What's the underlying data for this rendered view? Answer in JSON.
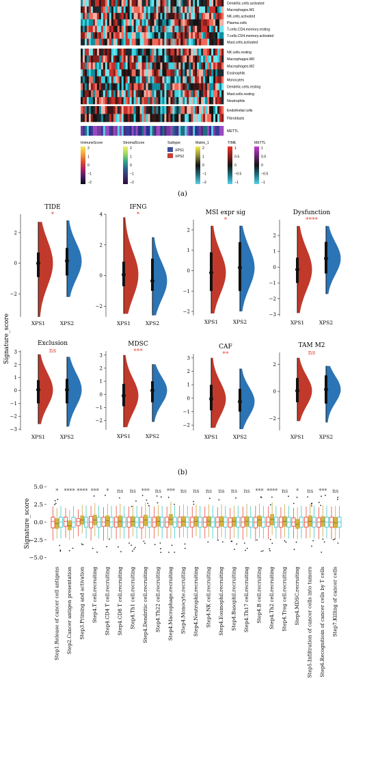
{
  "panel_a": {
    "label": "(a)",
    "row_groups": [
      [
        "Dendritic.cells.activated",
        "Macrophages.M1",
        "NK.cells.activated",
        "Plasma.cells",
        "T.cells.CD4.memory.resting",
        "T.cells.CD4.memory.activated",
        "Mast.cells.activated"
      ],
      [
        "NK.cells.resting",
        "Macrophages.M0",
        "Macrophages.M2",
        "Eosinophils",
        "Monocytes",
        "Dendritic.cells.resting",
        "Mast.cells.resting",
        "Neutrophils"
      ],
      [
        "Endothelial cells",
        "Fibroblasts"
      ],
      [
        "METTL"
      ]
    ],
    "legends": [
      {
        "title": "ImmuneScore",
        "ticks": [
          "2",
          "1",
          "0",
          "−1",
          "−2"
        ],
        "colors": [
          "#f2ea5a",
          "#f2a33a",
          "#e0502e",
          "#a8215e",
          "#4a1a6a",
          "#0a0a10"
        ]
      },
      {
        "title": "StromalScore",
        "ticks": [
          "2",
          "1",
          "0",
          "−1",
          "−2"
        ],
        "colors": [
          "#f1ee6a",
          "#9ad862",
          "#2fa58a",
          "#2e5d8e",
          "#3b2d6e",
          "#2a0a3e"
        ]
      },
      {
        "title": "Subtype",
        "items": [
          {
            "label": "XPS1",
            "color": "#3b4d99"
          },
          {
            "label": "XPS2",
            "color": "#c6403a"
          }
        ]
      },
      {
        "title": "Matrix_1",
        "ticks": [
          "2",
          "1",
          "0",
          "−1",
          "−2"
        ],
        "colors": [
          "#f6e84a",
          "#8a8a3a",
          "#121212",
          "#2a6a7a",
          "#5ad2e6"
        ]
      },
      {
        "title": "TIME",
        "ticks": [
          "1",
          "0.5",
          "0",
          "−0.5",
          "−1"
        ],
        "colors": [
          "#e8312b",
          "#8a1f1c",
          "#141414",
          "#1f6f7f",
          "#56d2e8"
        ]
      },
      {
        "title": "METTL",
        "ticks": [
          "1",
          "0.5",
          "0",
          "−0.5",
          "−1"
        ],
        "colors": [
          "#c43ad6",
          "#6a2475",
          "#141414",
          "#1f6f7f",
          "#56d2e8"
        ]
      }
    ]
  },
  "panel_b": {
    "label": "(b)",
    "ylabel": "Signature_score",
    "group_labels": [
      "XPS1",
      "XPS2"
    ],
    "colors": {
      "XPS1": "#c0392b",
      "XPS2": "#2b74b5",
      "sig": "#e8473a"
    }
  },
  "panel_c": {
    "ylabel": "Signature_score",
    "colors": [
      "#e8473a",
      "#c9a43c",
      "#3bc4c8"
    ]
  },
  "chart_data": [
    {
      "type": "violin",
      "title": "TIDE",
      "significance": "*",
      "ylim": [
        -3.5,
        3.2
      ],
      "yticks": [
        2,
        0,
        -2
      ],
      "groups": [
        "XPS1",
        "XPS2"
      ],
      "median": [
        0.0,
        0.15
      ],
      "q1": [
        -0.9,
        -0.8
      ],
      "q3": [
        0.7,
        1.0
      ],
      "min": [
        -3.5,
        -2.2
      ],
      "max": [
        2.7,
        2.8
      ]
    },
    {
      "type": "violin",
      "title": "IFNG",
      "significance": "*",
      "ylim": [
        -2.7,
        4.0
      ],
      "yticks": [
        4,
        2,
        0,
        -2
      ],
      "groups": [
        "XPS1",
        "XPS2"
      ],
      "median": [
        0.05,
        -0.35
      ],
      "q1": [
        -0.7,
        -1.0
      ],
      "q3": [
        0.9,
        1.1
      ],
      "min": [
        -2.5,
        -2.6
      ],
      "max": [
        3.8,
        2.5
      ]
    },
    {
      "type": "violin",
      "title": "MSI expr sig",
      "significance": "*",
      "ylim": [
        -2.2,
        2.5
      ],
      "yticks": [
        2,
        1,
        0,
        -1,
        -2
      ],
      "groups": [
        "XPS1",
        "XPS2"
      ],
      "median": [
        -0.1,
        0.15
      ],
      "q1": [
        -1.0,
        -1.0
      ],
      "q3": [
        0.9,
        1.4
      ],
      "min": [
        -2.1,
        -2.0
      ],
      "max": [
        2.2,
        2.2
      ]
    },
    {
      "type": "violin",
      "title": "Dysfunction",
      "significance": "****",
      "ylim": [
        -3.1,
        3.0
      ],
      "yticks": [
        2,
        1,
        0,
        -1,
        -2,
        -3
      ],
      "groups": [
        "XPS1",
        "XPS2"
      ],
      "median": [
        -0.15,
        0.55
      ],
      "q1": [
        -1.0,
        -0.4
      ],
      "q3": [
        0.6,
        1.6
      ],
      "min": [
        -2.9,
        -1.7
      ],
      "max": [
        2.6,
        2.6
      ]
    },
    {
      "type": "violin",
      "title": "Exclusion",
      "significance": "ns",
      "ylim": [
        -3.1,
        3.1
      ],
      "yticks": [
        3,
        2,
        1,
        0,
        -1,
        -2,
        -3
      ],
      "groups": [
        "XPS1",
        "XPS2"
      ],
      "median": [
        0.05,
        0.05
      ],
      "q1": [
        -1.0,
        -1.0
      ],
      "q3": [
        0.8,
        0.9
      ],
      "min": [
        -2.6,
        -2.8
      ],
      "max": [
        2.8,
        2.6
      ]
    },
    {
      "type": "violin",
      "title": "MDSC",
      "significance": "***",
      "ylim": [
        -2.7,
        3.3
      ],
      "yticks": [
        3,
        2,
        1,
        0,
        -1,
        -2
      ],
      "groups": [
        "XPS1",
        "XPS2"
      ],
      "median": [
        -0.1,
        0.3
      ],
      "q1": [
        -0.9,
        -0.6
      ],
      "q3": [
        0.8,
        1.0
      ],
      "min": [
        -2.5,
        -2.1
      ],
      "max": [
        3.0,
        2.3
      ]
    },
    {
      "type": "violin",
      "title": "CAF",
      "significance": "**",
      "ylim": [
        -2.4,
        3.3
      ],
      "yticks": [
        3,
        2,
        1,
        0,
        -1,
        -2
      ],
      "groups": [
        "XPS1",
        "XPS2"
      ],
      "median": [
        -0.05,
        -0.25
      ],
      "q1": [
        -0.9,
        -1.0
      ],
      "q3": [
        1.0,
        0.7
      ],
      "min": [
        -2.2,
        -2.3
      ],
      "max": [
        3.0,
        2.2
      ]
    },
    {
      "type": "violin",
      "title": "TAM M2",
      "significance": "ns",
      "ylim": [
        -2.9,
        2.9
      ],
      "yticks": [
        2,
        0,
        -2
      ],
      "groups": [
        "XPS1",
        "XPS2"
      ],
      "median": [
        0.05,
        0.15
      ],
      "q1": [
        -0.8,
        -0.9
      ],
      "q3": [
        1.0,
        1.2
      ],
      "min": [
        -2.2,
        -2.3
      ],
      "max": [
        2.5,
        1.9
      ]
    },
    {
      "type": "boxplot",
      "ylabel": "Signature_score",
      "ylim": [
        -5.7,
        5.3
      ],
      "yticks": [
        5.0,
        2.5,
        0.0,
        -2.5,
        -5.0
      ],
      "categories": [
        "Step1.Release of cancer cell antigens",
        "Step2.Cancer antigen presentation",
        "Step3.Priming and activation",
        "Step4.T cell.recruiting",
        "Step4.CD4 T cell.recruiting",
        "Step4.CD8 T cell.recruiting",
        "Step4.Th1 cell.recruiting",
        "Step4.Dendritic cell.recruiting",
        "Step4.Th22 cell.recruiting",
        "Step4.Macrophage.recruiting",
        "Step4.Monocyte.recruiting",
        "Step4.Neutrophil.recruiting",
        "Step4.NK cell.recruiting",
        "Step4.Eosinophil.recruiting",
        "Step4.Basophil.recruiting",
        "Step4.Th17 cell.recruiting",
        "Step4.B cell.recruiting",
        "Step4.Th2 cell.recruiting",
        "Step4.Treg cell.recruiting",
        "Step4.MDSC.recruiting",
        "Step5.Infiltration of cancer cells into tumors",
        "Step6.Recognitioin of cancer cells by T cells",
        "Step7.Killing of cancer cells"
      ],
      "significance": [
        "*",
        "****",
        "****",
        "***",
        "*",
        "ns",
        "ns",
        "***",
        "ns",
        "***",
        "ns",
        "ns",
        "ns",
        "ns",
        "ns",
        "ns",
        "***",
        "****",
        "ns",
        "*",
        "ns",
        "***",
        "ns"
      ],
      "series": [
        {
          "median": [
            0.1,
            0.1,
            0.1,
            0.0,
            0.0,
            0.0,
            0.0,
            0.0,
            0.0,
            0.0,
            0.0,
            0.0,
            0.0,
            0.0,
            0.0,
            0.0,
            0.0,
            0.0,
            0.0,
            0.0,
            0.0,
            0.0,
            0.0
          ],
          "q1": [
            -0.8,
            -0.6,
            -0.5,
            -0.8,
            -0.6,
            -0.7,
            -0.7,
            -0.8,
            -0.7,
            -0.7,
            -0.7,
            -0.7,
            -0.7,
            -0.7,
            -0.7,
            -0.7,
            -0.8,
            -0.6,
            -0.7,
            -0.6,
            -0.7,
            -0.7,
            -0.7
          ],
          "q3": [
            0.7,
            0.7,
            0.5,
            0.8,
            0.7,
            0.7,
            0.7,
            0.7,
            0.7,
            0.7,
            0.7,
            0.7,
            0.7,
            0.7,
            0.6,
            0.7,
            0.7,
            0.7,
            0.7,
            0.6,
            0.7,
            0.6,
            0.7
          ],
          "min": [
            -2.6,
            -2.2,
            -2.0,
            -2.6,
            -2.6,
            -2.4,
            -2.3,
            -2.4,
            -2.3,
            -2.3,
            -2.2,
            -2.2,
            -2.3,
            -2.4,
            -2.4,
            -2.5,
            -2.7,
            -2.4,
            -2.3,
            -2.3,
            -2.3,
            -2.4,
            -2.4
          ],
          "max": [
            2.2,
            2.0,
            1.8,
            2.3,
            2.1,
            2.3,
            2.2,
            2.2,
            2.2,
            2.2,
            2.3,
            2.2,
            2.2,
            2.1,
            2.0,
            2.2,
            2.3,
            2.2,
            2.1,
            2.0,
            2.2,
            2.1,
            2.2
          ]
        },
        {
          "median": [
            -0.2,
            -0.5,
            0.3,
            0.3,
            0.2,
            0.1,
            0.1,
            0.3,
            0.1,
            0.4,
            0.1,
            0.1,
            0.1,
            0.1,
            0.1,
            0.1,
            0.3,
            0.4,
            0.1,
            -0.3,
            0.1,
            0.1,
            -0.1
          ],
          "q1": [
            -0.9,
            -1.1,
            -0.3,
            -0.4,
            -0.6,
            -0.7,
            -0.6,
            -0.5,
            -0.6,
            -0.4,
            -0.6,
            -0.6,
            -0.6,
            -0.6,
            -0.6,
            -0.6,
            -0.6,
            -0.4,
            -0.6,
            -0.9,
            -0.6,
            -0.6,
            -0.8
          ],
          "q3": [
            0.5,
            0.2,
            0.9,
            1.0,
            0.9,
            0.9,
            0.8,
            1.0,
            0.8,
            1.1,
            0.8,
            0.8,
            0.8,
            0.8,
            0.7,
            0.8,
            0.9,
            1.1,
            0.8,
            0.4,
            0.9,
            0.8,
            0.7
          ],
          "min": [
            -2.3,
            -2.5,
            -1.6,
            -2.0,
            -2.4,
            -2.3,
            -2.0,
            -2.3,
            -2.0,
            -2.3,
            -2.1,
            -2.0,
            -2.1,
            -2.1,
            -2.2,
            -2.1,
            -2.2,
            -1.8,
            -2.1,
            -2.4,
            -2.2,
            -2.1,
            -2.4
          ],
          "max": [
            2.0,
            1.7,
            2.4,
            2.7,
            2.6,
            2.6,
            2.4,
            2.8,
            2.4,
            2.9,
            2.5,
            2.5,
            2.5,
            2.5,
            2.3,
            2.6,
            2.6,
            2.8,
            2.5,
            2.1,
            2.6,
            2.4,
            2.3
          ]
        },
        {
          "median": [
            0.0,
            0.0,
            0.0,
            0.0,
            0.0,
            0.0,
            0.0,
            0.0,
            0.0,
            0.0,
            0.0,
            0.0,
            0.0,
            0.0,
            0.0,
            0.0,
            0.0,
            0.0,
            0.0,
            0.0,
            0.0,
            0.0,
            0.0
          ],
          "q1": [
            -0.7,
            -0.7,
            -0.7,
            -0.7,
            -0.7,
            -0.7,
            -0.7,
            -0.7,
            -0.7,
            -0.7,
            -0.7,
            -0.7,
            -0.7,
            -0.7,
            -0.7,
            -0.7,
            -0.7,
            -0.7,
            -0.7,
            -0.7,
            -0.7,
            -0.7,
            -0.7
          ],
          "q3": [
            0.7,
            0.7,
            0.7,
            0.7,
            0.7,
            0.7,
            0.7,
            0.7,
            0.7,
            0.7,
            0.7,
            0.7,
            0.7,
            0.7,
            0.7,
            0.7,
            0.7,
            0.7,
            0.7,
            0.7,
            0.7,
            0.7,
            0.7
          ],
          "min": [
            -2.3,
            -2.3,
            -2.3,
            -2.3,
            -2.3,
            -2.3,
            -2.3,
            -2.3,
            -2.3,
            -2.3,
            -2.3,
            -2.3,
            -2.3,
            -2.3,
            -2.3,
            -2.3,
            -2.3,
            -2.3,
            -2.3,
            -2.3,
            -2.3,
            -2.3,
            -2.3
          ],
          "max": [
            2.3,
            2.3,
            2.3,
            2.3,
            2.3,
            2.3,
            2.3,
            2.3,
            2.3,
            2.3,
            2.3,
            2.3,
            2.3,
            2.3,
            2.3,
            2.3,
            2.3,
            2.3,
            2.3,
            2.3,
            2.3,
            2.3,
            2.3
          ]
        }
      ]
    }
  ]
}
